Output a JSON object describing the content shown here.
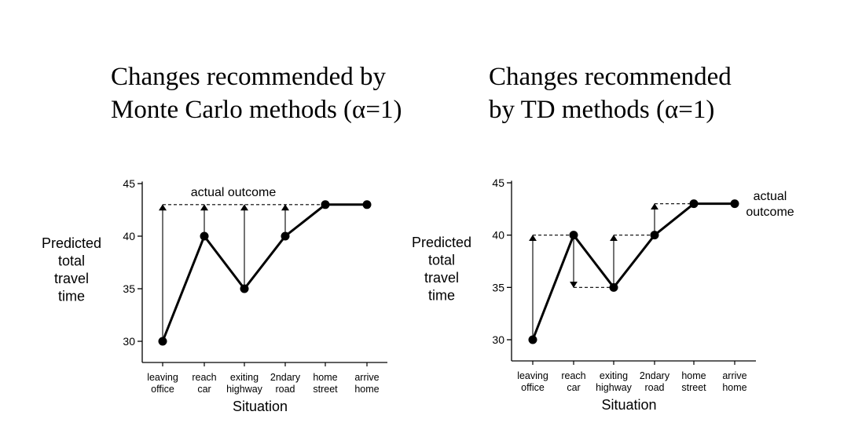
{
  "charts": [
    {
      "title_lines": [
        "Changes recommended by",
        "Monte Carlo methods (α=1)"
      ],
      "ylabel_lines": [
        "Predicted",
        "total",
        "travel",
        "time"
      ],
      "xlabel": "Situation",
      "annotation_lines": [
        "actual outcome"
      ]
    },
    {
      "title_lines": [
        "Changes recommended",
        "by TD methods (α=1)"
      ],
      "ylabel_lines": [
        "Predicted",
        "total",
        "travel",
        "time"
      ],
      "xlabel": "Situation",
      "annotation_lines": [
        "actual",
        "outcome"
      ]
    }
  ],
  "chart_data": [
    {
      "type": "line",
      "title": "Changes recommended by Monte Carlo methods (α=1)",
      "xlabel": "Situation",
      "ylabel": "Predicted total travel time",
      "categories": [
        [
          "leaving",
          "office"
        ],
        [
          "reach",
          "car"
        ],
        [
          "exiting",
          "highway"
        ],
        [
          "2ndary",
          "road"
        ],
        [
          "home",
          "street"
        ],
        [
          "arrive",
          "home"
        ]
      ],
      "values": [
        30,
        40,
        35,
        40,
        43,
        43
      ],
      "yticks": [
        30,
        35,
        40,
        45
      ],
      "ylim": [
        29.2,
        45.2
      ],
      "grid": false,
      "actual_outcome": 43,
      "annotation": "actual outcome",
      "recommended_changes": [
        {
          "index": 0,
          "from": 30,
          "to": 43
        },
        {
          "index": 1,
          "from": 40,
          "to": 43
        },
        {
          "index": 2,
          "from": 35,
          "to": 43
        },
        {
          "index": 3,
          "from": 40,
          "to": 43
        }
      ]
    },
    {
      "type": "line",
      "title": "Changes recommended by TD methods (α=1)",
      "xlabel": "Situation",
      "ylabel": "Predicted total travel time",
      "categories": [
        [
          "leaving",
          "office"
        ],
        [
          "reach",
          "car"
        ],
        [
          "exiting",
          "highway"
        ],
        [
          "2ndary",
          "road"
        ],
        [
          "home",
          "street"
        ],
        [
          "arrive",
          "home"
        ]
      ],
      "values": [
        30,
        40,
        35,
        40,
        43,
        43
      ],
      "yticks": [
        30,
        35,
        40,
        45
      ],
      "ylim": [
        29.2,
        45.2
      ],
      "grid": false,
      "actual_outcome": 43,
      "annotation": "actual outcome",
      "recommended_changes": [
        {
          "index": 0,
          "from": 30,
          "to": 40
        },
        {
          "index": 1,
          "from": 40,
          "to": 35
        },
        {
          "index": 2,
          "from": 35,
          "to": 40
        },
        {
          "index": 3,
          "from": 40,
          "to": 43
        }
      ]
    }
  ]
}
